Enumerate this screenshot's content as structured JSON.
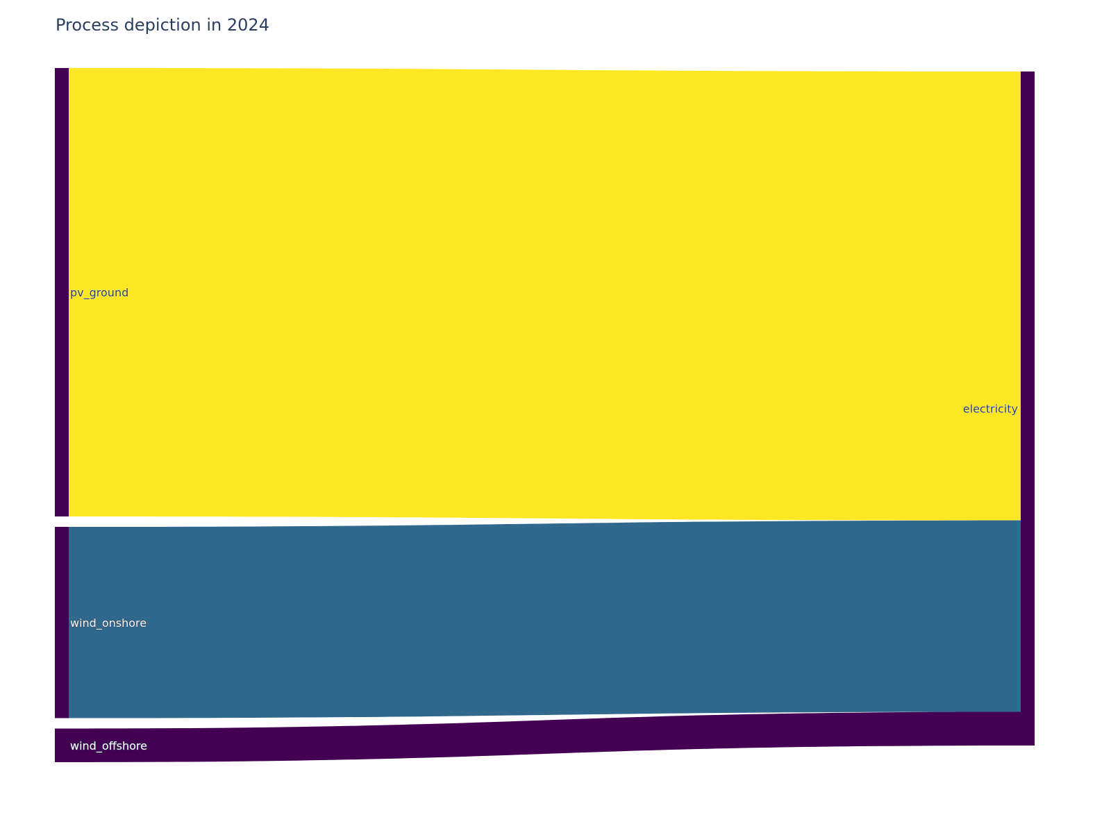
{
  "title": "Process depiction in 2024",
  "chart_data": {
    "type": "sankey",
    "title": "Process depiction in 2024",
    "nodes": [
      {
        "id": "pv_ground",
        "label": "pv_ground",
        "column": 0,
        "color": "#440154"
      },
      {
        "id": "wind_onshore",
        "label": "wind_onshore",
        "column": 0,
        "color": "#440154"
      },
      {
        "id": "wind_offshore",
        "label": "wind_offshore",
        "column": 0,
        "color": "#440154"
      },
      {
        "id": "electricity",
        "label": "electricity",
        "column": 1,
        "color": "#440154"
      }
    ],
    "links": [
      {
        "source": "pv_ground",
        "target": "electricity",
        "value": 66.6,
        "color": "#fde725"
      },
      {
        "source": "wind_onshore",
        "target": "electricity",
        "value": 28.4,
        "color": "#31688e"
      },
      {
        "source": "wind_offshore",
        "target": "electricity",
        "value": 5.0,
        "color": "#440154"
      }
    ]
  }
}
